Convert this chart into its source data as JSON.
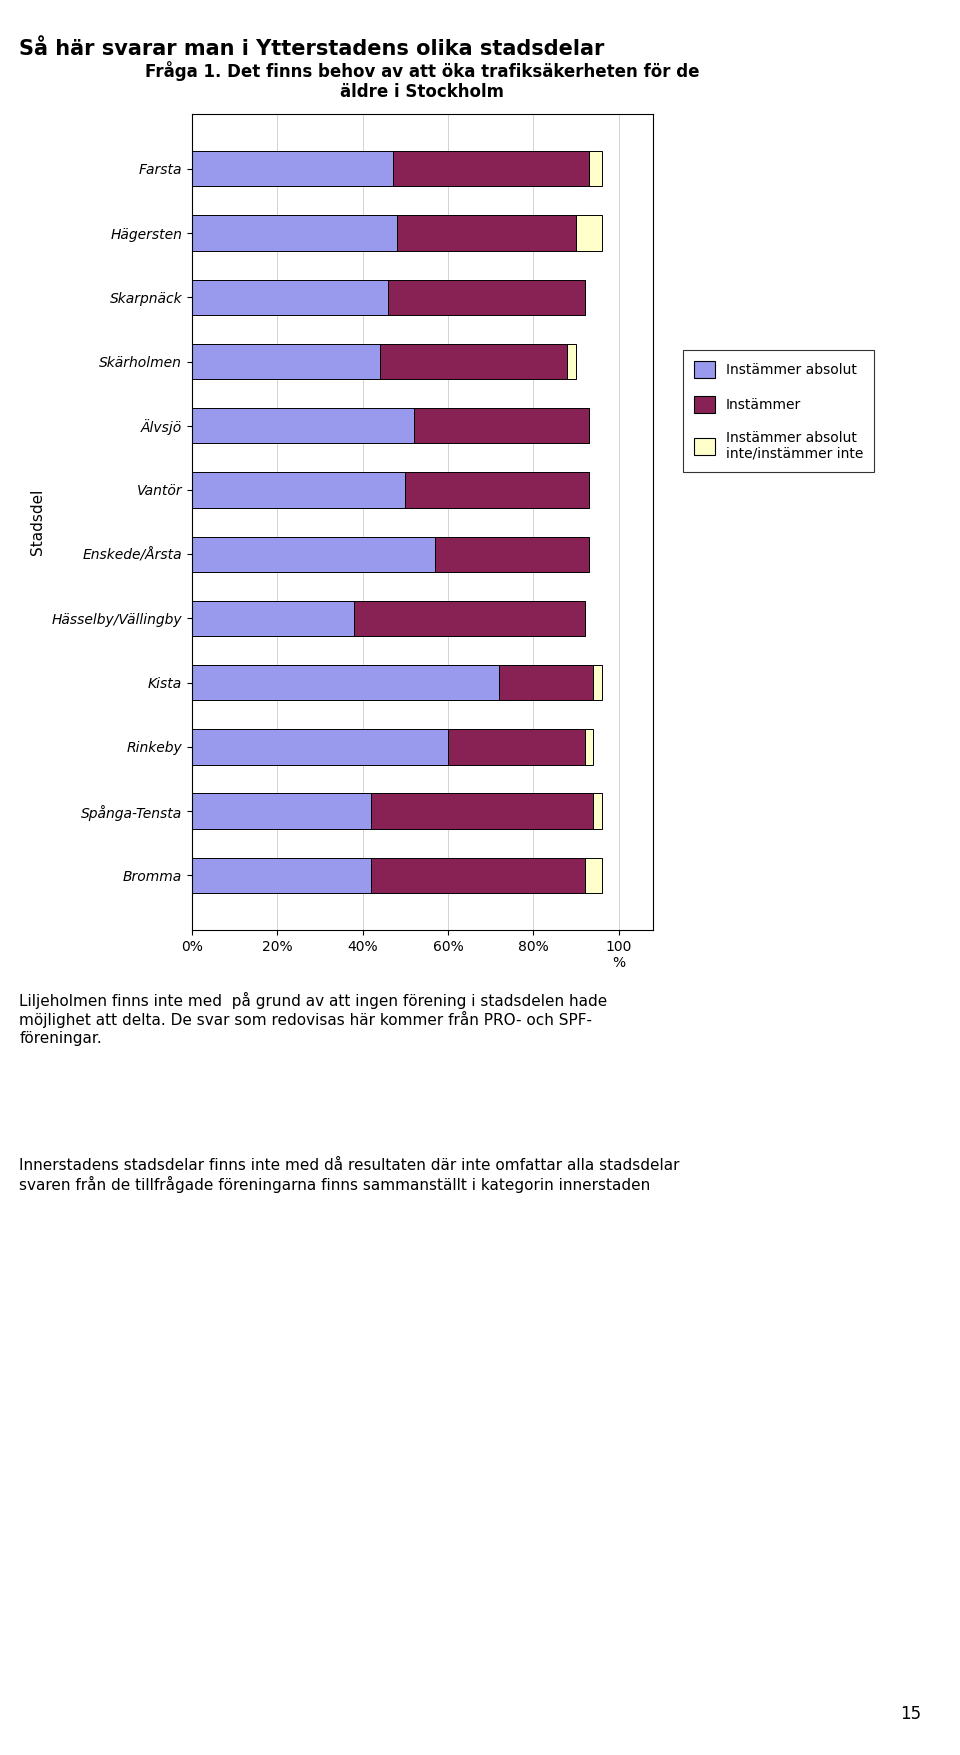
{
  "title_main": "Så här svarar man i Ytterstadens olika stadsdelar",
  "title_sub": "Fråga 1. Det finns behov av att öka trafiksäkerheten för de\näldre i Stockholm",
  "categories": [
    "Farsta",
    "Hägersten",
    "Skarpnäck",
    "Skärholmen",
    "Älvsjö",
    "Vantör",
    "Enskede/Årsta",
    "Hässelby/Vällingby",
    "Kista",
    "Rinkeby",
    "Spånga-Tensta",
    "Bromma"
  ],
  "instammer_absolut": [
    47,
    48,
    46,
    44,
    52,
    50,
    57,
    38,
    72,
    60,
    42,
    42
  ],
  "instammer": [
    46,
    42,
    46,
    44,
    41,
    43,
    36,
    54,
    22,
    32,
    52,
    50
  ],
  "instammer_inte": [
    3,
    6,
    0,
    2,
    0,
    0,
    0,
    0,
    2,
    2,
    2,
    4
  ],
  "color_absolut": "#9999ee",
  "color_instammer": "#882255",
  "color_inte": "#ffffcc",
  "ylabel": "Stadsdel",
  "legend_labels": [
    "Instämmer absolut",
    "Instämmer",
    "Instämmer absolut\ninte/instämmer inte"
  ],
  "note1": "Liljeholmen finns inte med  på grund av att ingen förening i stadsdelen hade\nmöjlighet att delta. De svar som redovisas här kommer från PRO- och SPF-\nföreningar.",
  "note2": "Innerstadens stadsdelar finns inte med då resultaten där inte omfattar alla stadsdelar\nsvaren från de tillfrågade föreningarna finns sammanställt i kategorin innerstaden",
  "page_number": "15"
}
